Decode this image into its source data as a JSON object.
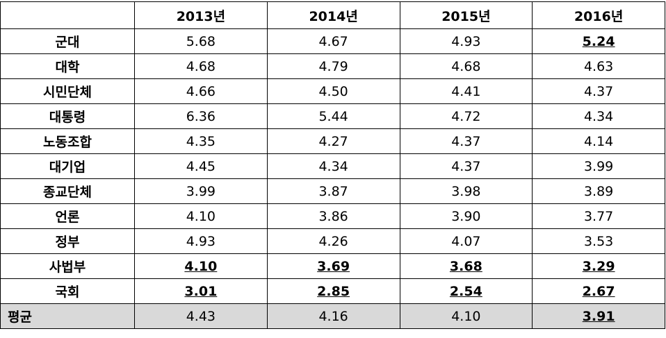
{
  "table": {
    "header": [
      "2013년",
      "2014년",
      "2015년",
      "2016년"
    ],
    "rows": [
      [
        "군대",
        "5.68",
        "4.67",
        "4.93",
        "5.24"
      ],
      [
        "대학",
        "4.68",
        "4.79",
        "4.68",
        "4.63"
      ],
      [
        "시민단체",
        "4.66",
        "4.50",
        "4.41",
        "4.37"
      ],
      [
        "대통령",
        "6.36",
        "5.44",
        "4.72",
        "4.34"
      ],
      [
        "노동조합",
        "4.35",
        "4.27",
        "4.37",
        "4.14"
      ],
      [
        "대기업",
        "4.45",
        "4.34",
        "4.37",
        "3.99"
      ],
      [
        "종교단체",
        "3.99",
        "3.87",
        "3.98",
        "3.89"
      ],
      [
        "언론",
        "4.10",
        "3.86",
        "3.90",
        "3.77"
      ],
      [
        "정부",
        "4.93",
        "4.26",
        "4.07",
        "3.53"
      ],
      [
        "사법부",
        "4.10",
        "3.69",
        "3.68",
        "3.29"
      ],
      [
        "국회",
        "3.01",
        "2.85",
        "2.54",
        "2.67"
      ],
      [
        "평균",
        "4.43",
        "4.16",
        "4.10",
        "3.91"
      ]
    ]
  }
}
